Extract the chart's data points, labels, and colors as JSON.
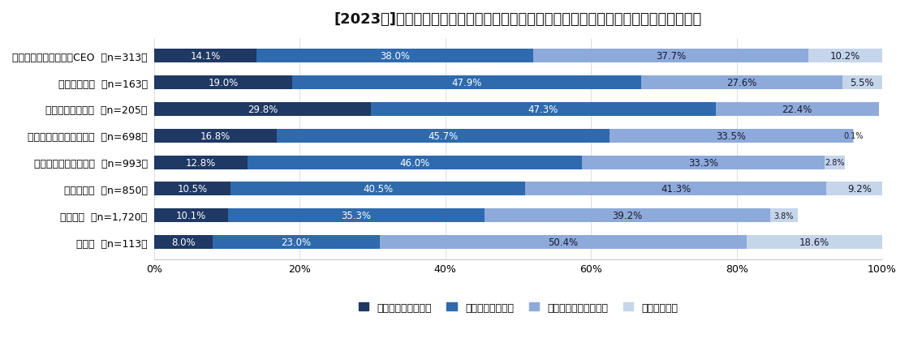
{
  "title": "[2023年]「カスタマーサクセス」がどういうものかを理解していますか？　（役職別）",
  "categories": [
    "会長・社長・経営者・CEO  （n=313）",
    "取締役・役員  （n=163）",
    "本部長・事業部長  （n=205）",
    "部長・部長代理・部次長  （n=698）",
    "課長・課長代理・次長  （n=993）",
    "係長・主任  （n=850）",
    "一般社員  （n=1,720）",
    "その他  （n=113）"
  ],
  "series": {
    "非常に理解している": [
      14.1,
      19.0,
      29.8,
      16.8,
      12.8,
      10.5,
      10.1,
      8.0
    ],
    "まあ理解している": [
      38.0,
      47.9,
      47.3,
      45.7,
      46.0,
      40.5,
      35.3,
      23.0
    ],
    "何となく理解している": [
      37.7,
      27.6,
      22.4,
      33.5,
      33.3,
      41.3,
      39.2,
      50.4
    ],
    "全く知らない": [
      10.2,
      5.5,
      0.0,
      0.1,
      2.8,
      9.2,
      3.8,
      18.6
    ]
  },
  "colors": [
    "#1f3864",
    "#2e6aad",
    "#8eaadb",
    "#c5d5ea"
  ],
  "legend_labels": [
    "非常に理解している",
    "まあ理解している",
    "何となく理解している",
    "全く知らない"
  ],
  "background_color": "#ffffff",
  "bar_height": 0.52,
  "title_fontsize": 13,
  "label_fontsize": 8.5,
  "tick_fontsize": 9,
  "legend_fontsize": 9
}
